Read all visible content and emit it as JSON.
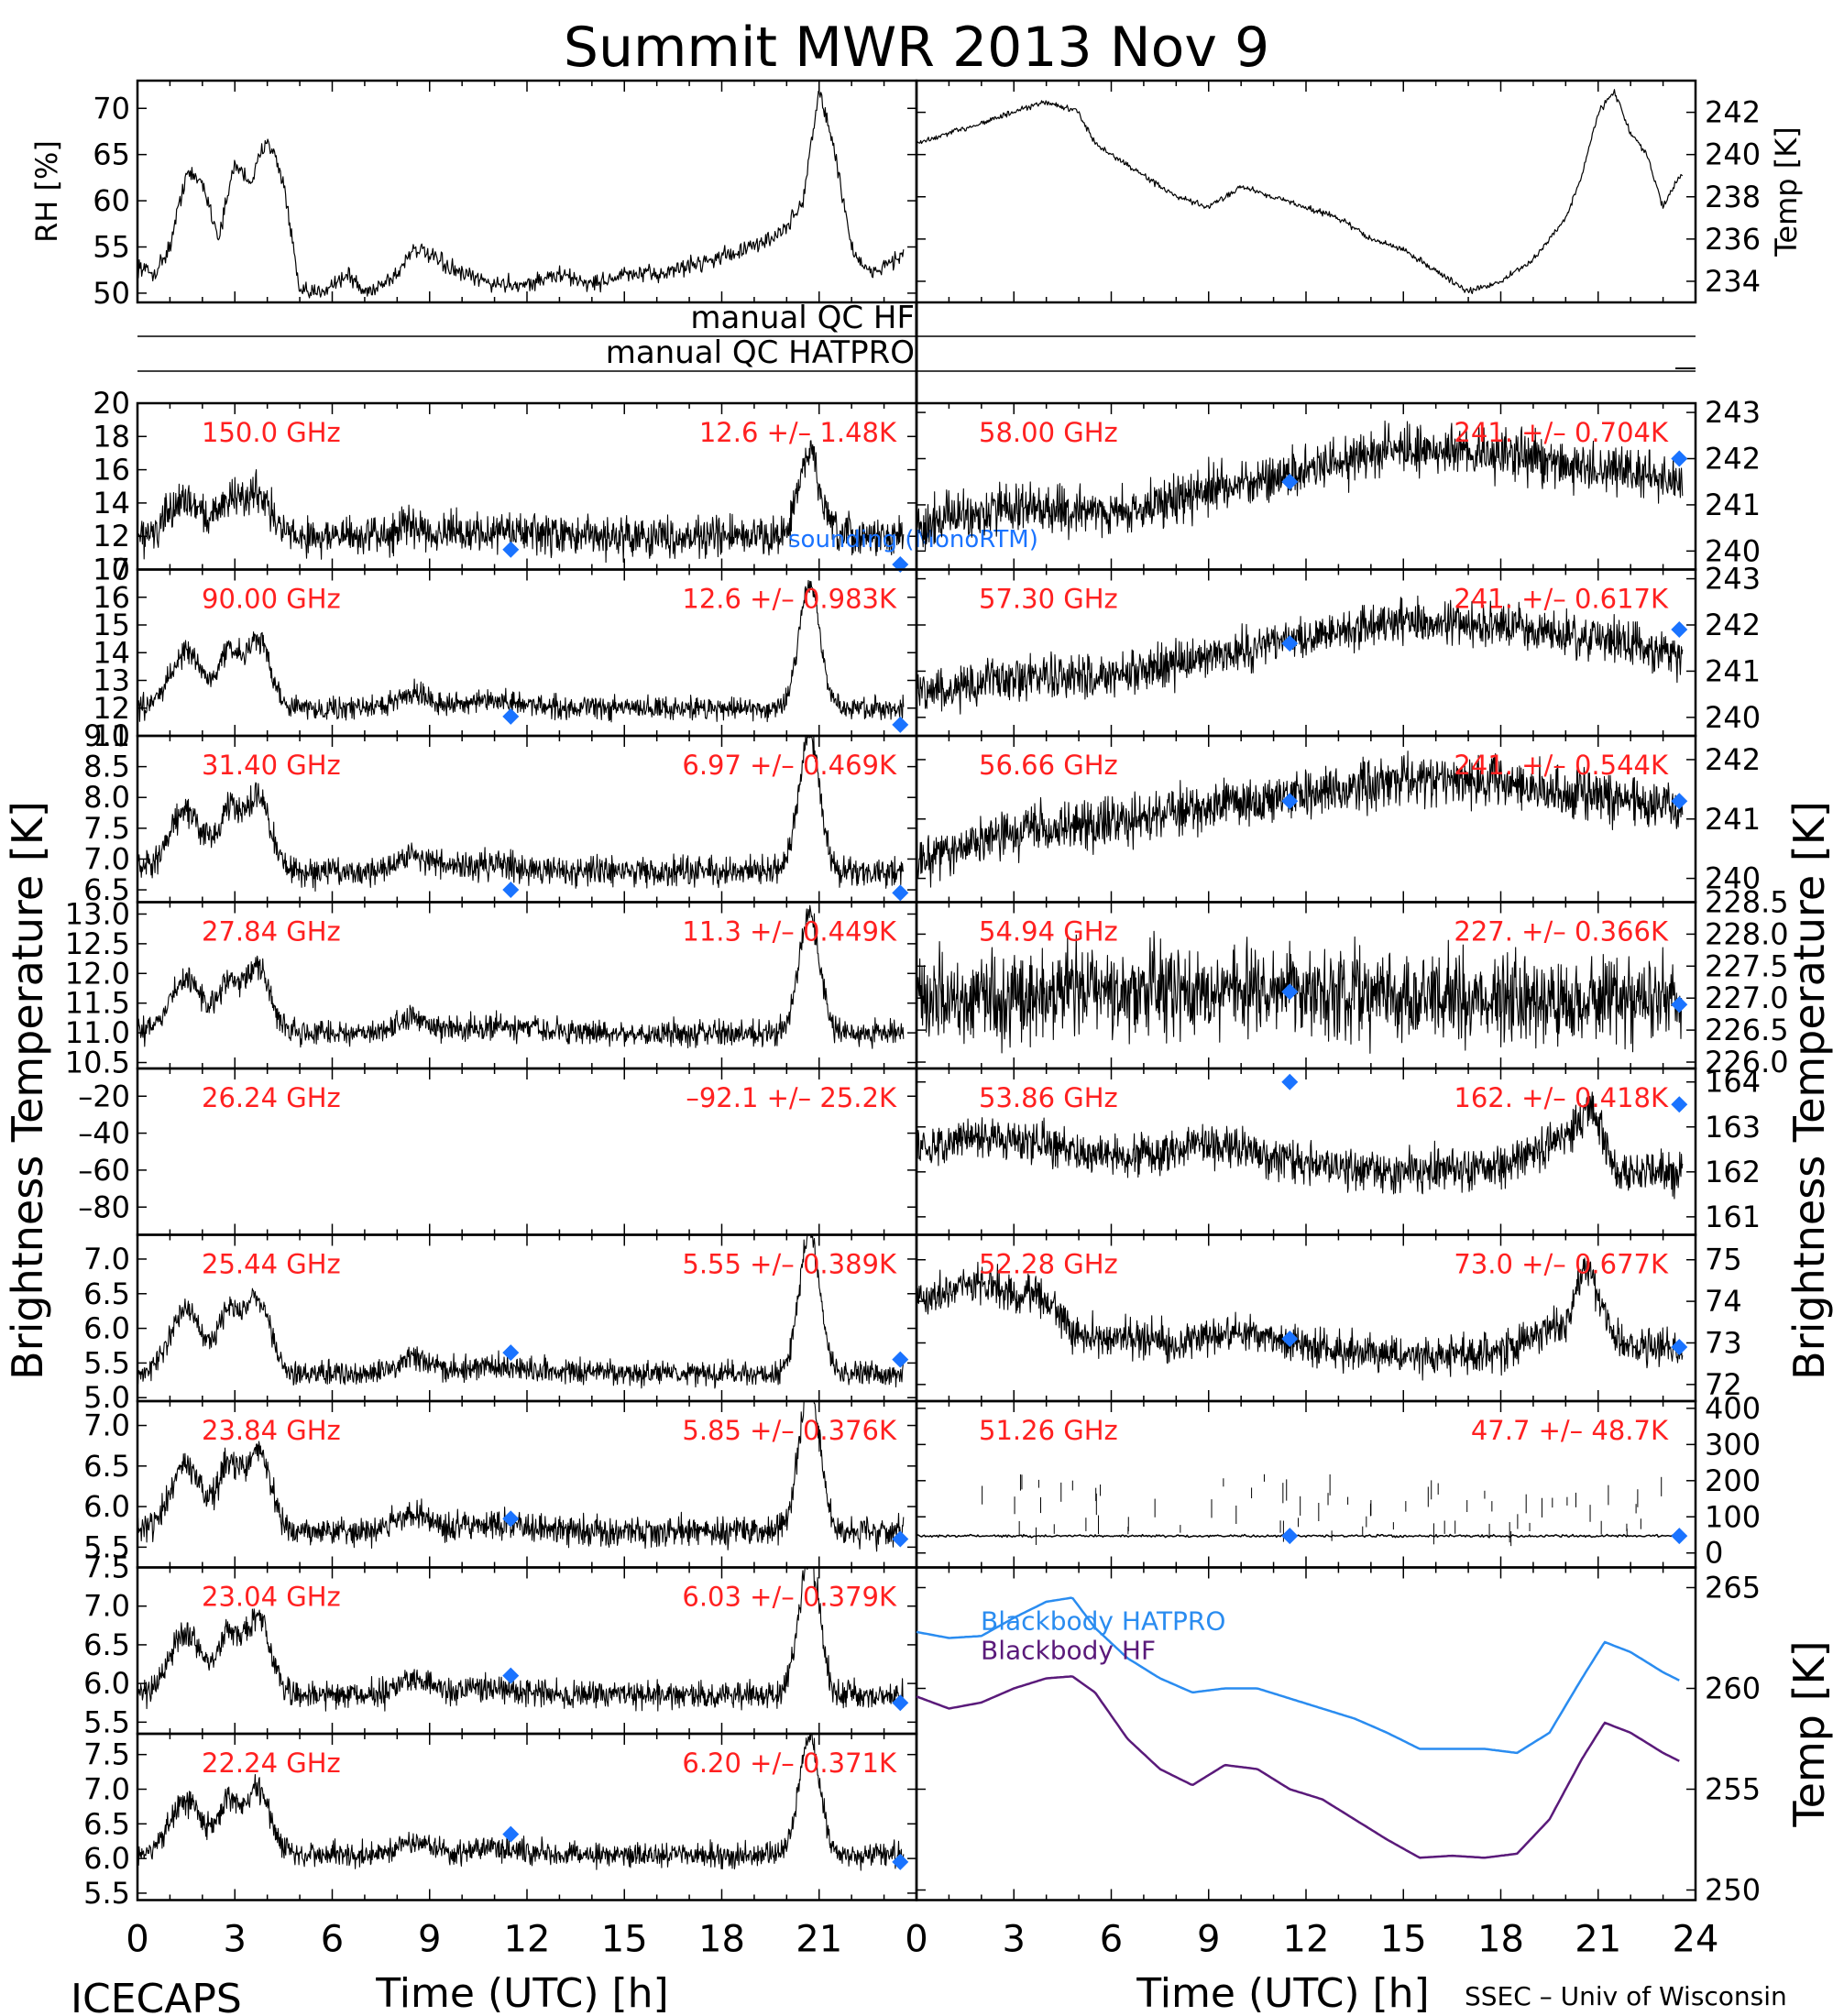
{
  "title": "Summit  MWR  2013  Nov   9",
  "footer": {
    "left": "ICECAPS",
    "right": "SSEC – Univ of Wisconsin",
    "xlabel_left": "Time  (UTC)  [h]",
    "xlabel_right": "Time  (UTC)  [h]"
  },
  "side_labels": {
    "left": "Brightness  Temperature  [K]",
    "right": "Brightness  Temperature  [K]"
  },
  "qc": {
    "hf": "manual  QC  HF",
    "hatpro": "manual  QC  HATPRO"
  },
  "colors": {
    "label": "#ff2020",
    "marker": "#1a73ff",
    "series": "#000000",
    "bb_hatpro": "#2a8cf0",
    "bb_hf": "#5a1a7a"
  },
  "chart_data": {
    "type": "line",
    "met": {
      "rh": {
        "ylabel": "RH [%]",
        "yticks": [
          "50",
          "55",
          "60",
          "65",
          "70"
        ],
        "ylim": [
          49,
          73
        ],
        "points": [
          [
            0,
            53
          ],
          [
            0.5,
            52
          ],
          [
            1,
            55
          ],
          [
            1.5,
            63
          ],
          [
            2,
            62
          ],
          [
            2.5,
            56
          ],
          [
            3,
            64
          ],
          [
            3.5,
            62
          ],
          [
            4,
            67
          ],
          [
            4.5,
            62
          ],
          [
            5,
            50
          ],
          [
            5.5,
            50
          ],
          [
            6,
            51
          ],
          [
            6.5,
            52
          ],
          [
            7,
            50
          ],
          [
            7.5,
            51
          ],
          [
            8,
            52
          ],
          [
            8.5,
            55
          ],
          [
            9,
            54
          ],
          [
            10,
            52
          ],
          [
            11,
            51
          ],
          [
            12,
            51
          ],
          [
            13,
            52
          ],
          [
            14,
            51
          ],
          [
            15,
            52
          ],
          [
            16,
            52
          ],
          [
            17,
            53
          ],
          [
            18,
            54
          ],
          [
            19,
            55
          ],
          [
            20,
            57
          ],
          [
            20.5,
            60
          ],
          [
            21,
            72
          ],
          [
            21.5,
            65
          ],
          [
            22,
            55
          ],
          [
            22.5,
            52
          ],
          [
            23,
            53
          ],
          [
            23.5,
            54
          ]
        ]
      },
      "temp": {
        "ylabel": "Temp [K]",
        "yticks": [
          "234",
          "236",
          "238",
          "240",
          "242"
        ],
        "ylim": [
          233,
          243.5
        ],
        "points": [
          [
            0,
            240.5
          ],
          [
            1,
            241
          ],
          [
            2,
            241.5
          ],
          [
            3,
            242
          ],
          [
            4,
            242.5
          ],
          [
            5,
            242
          ],
          [
            5.5,
            240.5
          ],
          [
            6,
            240
          ],
          [
            7,
            239
          ],
          [
            8,
            238
          ],
          [
            9,
            237.5
          ],
          [
            10,
            238.5
          ],
          [
            11,
            238
          ],
          [
            12,
            237.5
          ],
          [
            13,
            237
          ],
          [
            14,
            236
          ],
          [
            15,
            235.5
          ],
          [
            16,
            234.5
          ],
          [
            17,
            233.5
          ],
          [
            18,
            234
          ],
          [
            19,
            235
          ],
          [
            20,
            237
          ],
          [
            20.5,
            239
          ],
          [
            21,
            242
          ],
          [
            21.5,
            243
          ],
          [
            22,
            241
          ],
          [
            22.5,
            240
          ],
          [
            23,
            237.5
          ],
          [
            23.5,
            239
          ]
        ]
      }
    },
    "x_ticks_left": [
      "0",
      "3",
      "6",
      "9",
      "12",
      "15",
      "18",
      "21"
    ],
    "x_ticks_right": [
      "0",
      "3",
      "6",
      "9",
      "12",
      "15",
      "18",
      "21",
      "24"
    ],
    "left_panels": [
      {
        "freq": "150.0 GHz",
        "stat": "12.6 +/–  1.48K",
        "yticks": [
          "10",
          "12",
          "14",
          "16",
          "18",
          "20"
        ],
        "ylim": [
          10,
          20
        ],
        "base": 12,
        "amp": 5,
        "noise": 1.0,
        "markers": [
          [
            11.5,
            11.2
          ],
          [
            23.5,
            10.3
          ]
        ],
        "note": "sounding (MonoRTM)"
      },
      {
        "freq": "90.00 GHz",
        "stat": "12.6 +/– 0.983K",
        "yticks": [
          "11",
          "12",
          "13",
          "14",
          "15",
          "16",
          "17"
        ],
        "ylim": [
          11,
          17
        ],
        "base": 12,
        "amp": 4.5,
        "noise": 0.35,
        "markers": [
          [
            11.5,
            11.7
          ],
          [
            23.5,
            11.4
          ]
        ]
      },
      {
        "freq": "31.40 GHz",
        "stat": "6.97 +/– 0.469K",
        "yticks": [
          "6.5",
          "7.0",
          "7.5",
          "8.0",
          "8.5",
          "9.0"
        ],
        "ylim": [
          6.3,
          9.0
        ],
        "base": 6.8,
        "amp": 2.2,
        "noise": 0.2,
        "markers": [
          [
            11.5,
            6.5
          ],
          [
            23.5,
            6.45
          ]
        ]
      },
      {
        "freq": "27.84 GHz",
        "stat": "11.3 +/– 0.449K",
        "yticks": [
          "10.5",
          "11.0",
          "11.5",
          "12.0",
          "12.5",
          "13.0"
        ],
        "ylim": [
          10.4,
          13.2
        ],
        "base": 11.0,
        "amp": 2.0,
        "noise": 0.18,
        "markers": []
      },
      {
        "freq": "26.24 GHz",
        "stat": "–92.1 +/–  25.2K",
        "yticks": [
          "–80",
          "–60",
          "–40",
          "–20"
        ],
        "ylim": [
          -95,
          -5
        ],
        "base": null,
        "amp": 0,
        "noise": 0,
        "markers": []
      },
      {
        "freq": "25.44 GHz",
        "stat": "5.55 +/– 0.389K",
        "yticks": [
          "5.0",
          "5.5",
          "6.0",
          "6.5",
          "7.0"
        ],
        "ylim": [
          4.95,
          7.35
        ],
        "base": 5.35,
        "amp": 2.0,
        "noise": 0.15,
        "markers": [
          [
            11.5,
            5.65
          ],
          [
            23.5,
            5.55
          ]
        ]
      },
      {
        "freq": "23.84 GHz",
        "stat": "5.85 +/– 0.376K",
        "yticks": [
          "5.5",
          "6.0",
          "6.5",
          "7.0"
        ],
        "ylim": [
          5.25,
          7.3
        ],
        "base": 5.7,
        "amp": 1.8,
        "noise": 0.15,
        "markers": [
          [
            11.5,
            5.85
          ],
          [
            23.5,
            5.6
          ]
        ]
      },
      {
        "freq": "23.04 GHz",
        "stat": "6.03 +/– 0.379K",
        "yticks": [
          "5.5",
          "6.0",
          "6.5",
          "7.0",
          "7.5"
        ],
        "ylim": [
          5.35,
          7.5
        ],
        "base": 5.85,
        "amp": 1.8,
        "noise": 0.15,
        "markers": [
          [
            11.5,
            6.1
          ],
          [
            23.5,
            5.75
          ]
        ]
      },
      {
        "freq": "22.24 GHz",
        "stat": "6.20 +/– 0.371K",
        "yticks": [
          "5.5",
          "6.0",
          "6.5",
          "7.0",
          "7.5"
        ],
        "ylim": [
          5.4,
          7.8
        ],
        "base": 6.05,
        "amp": 1.7,
        "noise": 0.15,
        "markers": [
          [
            11.5,
            6.35
          ],
          [
            23.5,
            5.95
          ]
        ]
      }
    ],
    "right_panels": [
      {
        "freq": "58.00 GHz",
        "stat": "241. +/– 0.704K",
        "yticks": [
          "240",
          "241",
          "242",
          "243"
        ],
        "ylim": [
          239.6,
          243.2
        ],
        "kind": "trend",
        "pts": [
          [
            0,
            240.5
          ],
          [
            3,
            241
          ],
          [
            6,
            240.8
          ],
          [
            9,
            241.3
          ],
          [
            12,
            241.7
          ],
          [
            15,
            242.2
          ],
          [
            18,
            242.1
          ],
          [
            21,
            241.8
          ],
          [
            23.5,
            241.5
          ]
        ],
        "noise": 0.45,
        "markers": [
          [
            11.5,
            241.5
          ],
          [
            23.5,
            242
          ]
        ]
      },
      {
        "freq": "57.30 GHz",
        "stat": "241. +/– 0.617K",
        "yticks": [
          "240",
          "241",
          "242",
          "243"
        ],
        "ylim": [
          239.6,
          243.2
        ],
        "kind": "trend",
        "pts": [
          [
            0,
            240.5
          ],
          [
            3,
            240.9
          ],
          [
            6,
            240.9
          ],
          [
            9,
            241.3
          ],
          [
            12,
            241.7
          ],
          [
            15,
            242.1
          ],
          [
            18,
            242.0
          ],
          [
            21,
            241.7
          ],
          [
            23.5,
            241.4
          ]
        ],
        "noise": 0.4,
        "markers": [
          [
            11.5,
            241.6
          ],
          [
            23.5,
            241.9
          ]
        ]
      },
      {
        "freq": "56.66 GHz",
        "stat": "241. +/– 0.544K",
        "yticks": [
          "240",
          "241",
          "242"
        ],
        "ylim": [
          239.6,
          242.4
        ],
        "kind": "trend",
        "pts": [
          [
            0,
            240.3
          ],
          [
            3,
            240.8
          ],
          [
            6,
            240.9
          ],
          [
            9,
            241.2
          ],
          [
            12,
            241.4
          ],
          [
            15,
            241.7
          ],
          [
            18,
            241.6
          ],
          [
            21,
            241.4
          ],
          [
            23.5,
            241.2
          ]
        ],
        "noise": 0.35,
        "markers": [
          [
            11.5,
            241.3
          ],
          [
            23.5,
            241.3
          ]
        ]
      },
      {
        "freq": "54.94 GHz",
        "stat": "227. +/– 0.366K",
        "yticks": [
          "226.0",
          "226.5",
          "227.0",
          "227.5",
          "228.0",
          "228.5"
        ],
        "ylim": [
          225.9,
          228.5
        ],
        "kind": "trend",
        "pts": [
          [
            0,
            227.0
          ],
          [
            6,
            227.1
          ],
          [
            12,
            227.1
          ],
          [
            18,
            227.0
          ],
          [
            23.5,
            227.0
          ]
        ],
        "noise": 0.6,
        "markers": [
          [
            11.5,
            227.1
          ],
          [
            23.5,
            226.9
          ]
        ]
      },
      {
        "freq": "53.86 GHz",
        "stat": "162. +/– 0.418K",
        "yticks": [
          "161",
          "162",
          "163",
          "164"
        ],
        "ylim": [
          160.6,
          164.3
        ],
        "kind": "trend",
        "pts": [
          [
            0,
            162.5
          ],
          [
            2,
            162.8
          ],
          [
            4,
            162.6
          ],
          [
            6,
            162.3
          ],
          [
            9,
            162.6
          ],
          [
            12,
            162.2
          ],
          [
            15,
            162.0
          ],
          [
            18,
            162.1
          ],
          [
            20,
            162.8
          ],
          [
            20.8,
            163.5
          ],
          [
            21.5,
            162.0
          ],
          [
            23.5,
            162.0
          ]
        ],
        "noise": 0.4,
        "markers": [
          [
            11.5,
            164.0
          ],
          [
            23.5,
            163.5
          ]
        ]
      },
      {
        "freq": "52.28 GHz",
        "stat": "73.0 +/– 0.677K",
        "yticks": [
          "72",
          "73",
          "74",
          "75"
        ],
        "ylim": [
          71.6,
          75.6
        ],
        "kind": "trend",
        "pts": [
          [
            0,
            74.0
          ],
          [
            2,
            74.5
          ],
          [
            4,
            74.0
          ],
          [
            5,
            73.2
          ],
          [
            8,
            73.0
          ],
          [
            10,
            73.3
          ],
          [
            12,
            72.9
          ],
          [
            15,
            72.7
          ],
          [
            18,
            72.8
          ],
          [
            20,
            73.5
          ],
          [
            20.6,
            75.0
          ],
          [
            21.5,
            73.0
          ],
          [
            23.5,
            72.8
          ]
        ],
        "noise": 0.4,
        "markers": [
          [
            11.5,
            73.1
          ],
          [
            23.5,
            72.9
          ]
        ]
      },
      {
        "freq": "51.26 GHz",
        "stat": "47.7 +/–  48.7K",
        "yticks": [
          "0",
          "100",
          "200",
          "300",
          "400"
        ],
        "ylim": [
          -40,
          420
        ],
        "kind": "spiky",
        "pts": [
          [
            0,
            47
          ],
          [
            23.5,
            47
          ]
        ],
        "noise": 3,
        "markers": [
          [
            11.5,
            47
          ],
          [
            23.5,
            47
          ]
        ]
      }
    ],
    "blackbody": {
      "ylabel": "Temp [K]",
      "yticks": [
        "250",
        "255",
        "260",
        "265"
      ],
      "ylim": [
        249.5,
        266
      ],
      "legend": [
        "Blackbody HATPRO",
        "Blackbody HF"
      ],
      "hatpro": [
        [
          0,
          262.8
        ],
        [
          1,
          262.5
        ],
        [
          2,
          262.6
        ],
        [
          3,
          263.5
        ],
        [
          4,
          264.3
        ],
        [
          4.8,
          264.5
        ],
        [
          5.5,
          263.0
        ],
        [
          6.5,
          261.5
        ],
        [
          7.5,
          260.5
        ],
        [
          8.5,
          259.8
        ],
        [
          9.5,
          260.0
        ],
        [
          10.5,
          260.0
        ],
        [
          11.5,
          259.5
        ],
        [
          12.5,
          259.0
        ],
        [
          13.5,
          258.5
        ],
        [
          14.5,
          257.8
        ],
        [
          15.5,
          257.0
        ],
        [
          16.5,
          257.0
        ],
        [
          17.5,
          257.0
        ],
        [
          18.5,
          256.8
        ],
        [
          19.5,
          257.8
        ],
        [
          20.5,
          260.5
        ],
        [
          21.2,
          262.3
        ],
        [
          22,
          261.8
        ],
        [
          23,
          260.8
        ],
        [
          23.5,
          260.4
        ]
      ],
      "hf": [
        [
          0,
          259.6
        ],
        [
          1,
          259.0
        ],
        [
          2,
          259.3
        ],
        [
          3,
          260.0
        ],
        [
          4,
          260.5
        ],
        [
          4.8,
          260.6
        ],
        [
          5.5,
          259.8
        ],
        [
          6.5,
          257.5
        ],
        [
          7.5,
          256.0
        ],
        [
          8.5,
          255.2
        ],
        [
          9.5,
          256.2
        ],
        [
          10.5,
          256.0
        ],
        [
          11.5,
          255.0
        ],
        [
          12.5,
          254.5
        ],
        [
          13.5,
          253.5
        ],
        [
          14.5,
          252.5
        ],
        [
          15.5,
          251.6
        ],
        [
          16.5,
          251.7
        ],
        [
          17.5,
          251.6
        ],
        [
          18.5,
          251.8
        ],
        [
          19.5,
          253.5
        ],
        [
          20.5,
          256.5
        ],
        [
          21.2,
          258.3
        ],
        [
          22,
          257.8
        ],
        [
          23,
          256.8
        ],
        [
          23.5,
          256.4
        ]
      ]
    }
  }
}
